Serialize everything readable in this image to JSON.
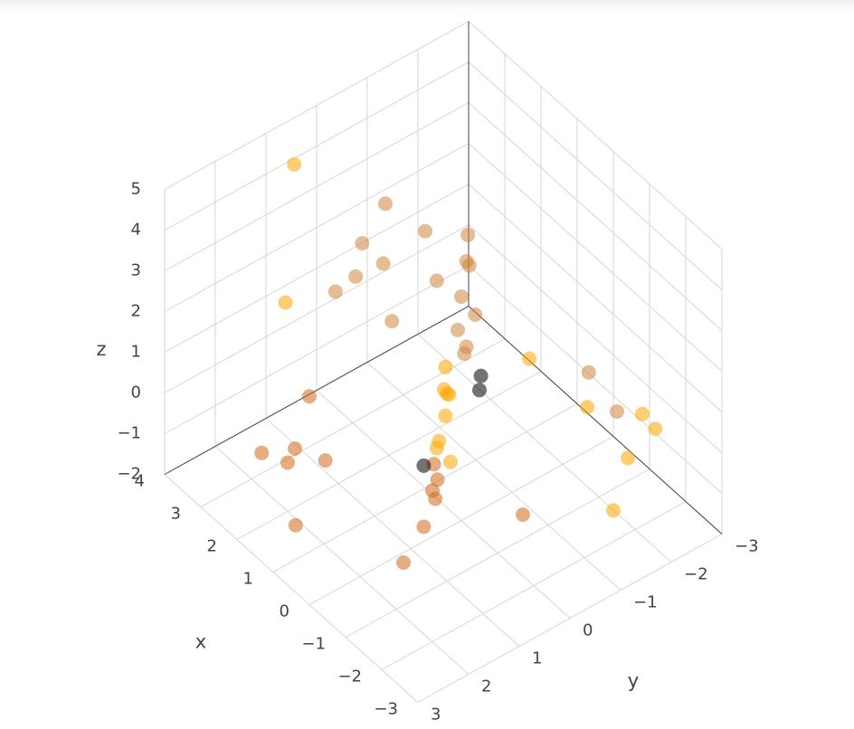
{
  "chart_data": {
    "type": "scatter3d",
    "xlabel": "x",
    "ylabel": "y",
    "zlabel": "z",
    "xlim": [
      -3,
      4
    ],
    "ylim": [
      -3,
      3
    ],
    "zlim": [
      -2,
      5
    ],
    "xticks": [
      {
        "value": -3,
        "label": "−3"
      },
      {
        "value": -2,
        "label": "−2"
      },
      {
        "value": -1,
        "label": "−1"
      },
      0,
      1,
      2,
      3,
      4
    ],
    "yticks": [
      {
        "value": -3,
        "label": "−3"
      },
      {
        "value": -2,
        "label": "−2"
      },
      {
        "value": -1,
        "label": "−1"
      },
      0,
      1,
      2,
      3
    ],
    "zticks": [
      {
        "value": -2,
        "label": "−2"
      },
      {
        "value": -1,
        "label": "−1"
      },
      0,
      1,
      2,
      3,
      4,
      5
    ],
    "grid": true,
    "series": [
      {
        "color": "#cd853f",
        "x": [
          0.1,
          0,
          0.2,
          0,
          -0.1,
          0.1,
          0,
          0.2,
          2.8,
          2.5,
          3.0,
          2.2,
          2.6,
          1.8,
          2.4,
          3.2,
          -1.5,
          -1.0
        ],
        "y": [
          -0.2,
          -0.1,
          -0.3,
          0,
          -0.2,
          0,
          -0.1,
          -0.2,
          -0.5,
          0.3,
          -0.6,
          -0.2,
          0.1,
          -0.8,
          -1.0,
          0.2,
          -2.0,
          -1.8
        ],
        "z": [
          4.8,
          4.3,
          3.9,
          3.5,
          3.0,
          2.6,
          2.2,
          1.8,
          3.2,
          2.2,
          1.5,
          1.0,
          2.8,
          1.9,
          2.5,
          1.2,
          0.5,
          1.2
        ]
      },
      {
        "color": "#ffa500",
        "x": [
          0.3,
          0.2,
          0.4,
          0.3,
          0.2,
          0.4,
          0.3,
          0.2,
          -2.2,
          -2.5,
          -2.0,
          -1.8,
          3.5,
          1.2,
          2.9,
          -2.8
        ],
        "y": [
          0.1,
          0.2,
          0,
          0.1,
          0.3,
          0.2,
          0,
          0.1,
          -2.0,
          -1.5,
          -2.4,
          -1.2,
          0.8,
          -2.2,
          1.4,
          -1.0
        ],
        "z": [
          1.6,
          1.2,
          0.8,
          0.4,
          0,
          -0.4,
          -0.8,
          1.0,
          1.0,
          0.5,
          0.2,
          1.4,
          4.5,
          -0.5,
          2.0,
          -0.2
        ]
      },
      {
        "color": "#d2691e",
        "x": [
          0.2,
          0.1,
          0.3,
          0.2,
          0.1,
          2.5,
          2.0,
          3.0,
          1.5,
          2.8,
          1.8,
          -0.5,
          -1.0
        ],
        "y": [
          0.4,
          0.5,
          0.3,
          0.6,
          0.4,
          1.5,
          2.0,
          1.8,
          2.2,
          1.0,
          1.4,
          1.5,
          -0.5
        ],
        "z": [
          -0.5,
          -1.0,
          -1.5,
          -1.9,
          -0.8,
          -1.2,
          -0.8,
          -1.5,
          -1.8,
          -0.5,
          -1.0,
          -1.6,
          -1.4
        ]
      },
      {
        "color": "#000000",
        "x": [
          0.3,
          0.2,
          0.2
        ],
        "y": [
          -0.6,
          -0.5,
          0.6
        ],
        "z": [
          0.9,
          0.7,
          -0.4
        ]
      }
    ]
  }
}
